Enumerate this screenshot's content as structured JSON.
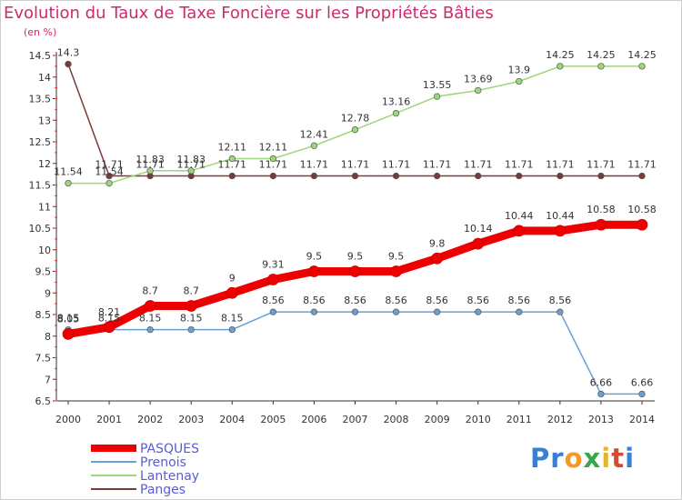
{
  "title": "Evolution du Taux de Taxe Foncière sur les Propriétés Bâties",
  "unit": "(en %)",
  "brand": {
    "text": "Proxiti",
    "letters": [
      {
        "ch": "P",
        "color": "#3a7fd1"
      },
      {
        "ch": "r",
        "color": "#3a7fd1"
      },
      {
        "ch": "o",
        "color": "#f19a25"
      },
      {
        "ch": "x",
        "color": "#35a84a"
      },
      {
        "ch": "i",
        "color": "#e8b42a"
      },
      {
        "ch": "t",
        "color": "#d64a2f"
      },
      {
        "ch": "i",
        "color": "#3a7fd1"
      }
    ]
  },
  "chart_data": {
    "type": "line",
    "categories": [
      "2000",
      "2001",
      "2002",
      "2003",
      "2004",
      "2005",
      "2006",
      "2007",
      "2008",
      "2009",
      "2010",
      "2011",
      "2012",
      "2013",
      "2014"
    ],
    "ylim": [
      6.5,
      14.5
    ],
    "yticks": [
      "6.5",
      "7",
      "7.5",
      "8",
      "8.5",
      "9",
      "9.5",
      "10",
      "10.5",
      "11",
      "11.5",
      "12",
      "12.5",
      "13",
      "13.5",
      "14",
      "14.5"
    ],
    "grid": false,
    "series": [
      {
        "name": "PASQUES",
        "color": "#ee0000",
        "width": 9,
        "values": [
          8.05,
          8.21,
          8.7,
          8.7,
          9,
          9.31,
          9.5,
          9.5,
          9.5,
          9.8,
          10.14,
          10.44,
          10.44,
          10.58,
          10.58
        ],
        "labels": [
          "8.05",
          "8.21",
          "8.7",
          "8.7",
          "9",
          "9.31",
          "9.5",
          "9.5",
          "9.5",
          "9.8",
          "10.14",
          "10.44",
          "10.44",
          "10.58",
          "10.58"
        ]
      },
      {
        "name": "Prenois",
        "color": "#6c9fcf",
        "width": 1.5,
        "values": [
          8.15,
          8.15,
          8.15,
          8.15,
          8.15,
          8.56,
          8.56,
          8.56,
          8.56,
          8.56,
          8.56,
          8.56,
          8.56,
          6.66,
          6.66
        ],
        "labels": [
          "8.15",
          "8.15",
          "8.15",
          "8.15",
          "8.15",
          "8.56",
          "8.56",
          "8.56",
          "8.56",
          "8.56",
          "8.56",
          "8.56",
          "8.56",
          "6.66",
          "6.66"
        ]
      },
      {
        "name": "Lantenay",
        "color": "#9ed67a",
        "width": 1.5,
        "values": [
          11.54,
          11.54,
          11.83,
          11.83,
          12.11,
          12.11,
          12.41,
          12.78,
          13.16,
          13.55,
          13.69,
          13.9,
          14.25,
          14.25,
          14.25
        ],
        "labels": [
          "11.54",
          "11.54",
          "11.83",
          "11.83",
          "12.11",
          "12.11",
          "12.41",
          "12.78",
          "13.16",
          "13.55",
          "13.69",
          "13.9",
          "14.25",
          "14.25",
          "14.25"
        ]
      },
      {
        "name": "Panges",
        "color": "#7a3a3a",
        "width": 1.5,
        "values": [
          14.3,
          11.71,
          11.71,
          11.71,
          11.71,
          11.71,
          11.71,
          11.71,
          11.71,
          11.71,
          11.71,
          11.71,
          11.71,
          11.71,
          11.71
        ],
        "labels": [
          "14.3",
          "11.71",
          "11.71",
          "11.71",
          "11.71",
          "11.71",
          "11.71",
          "11.71",
          "11.71",
          "11.71",
          "11.71",
          "11.71",
          "11.71",
          "11.71",
          "11.71"
        ]
      }
    ],
    "legend_position": "bottom-left",
    "legend": [
      "PASQUES",
      "Prenois",
      "Lantenay",
      "Panges"
    ]
  }
}
